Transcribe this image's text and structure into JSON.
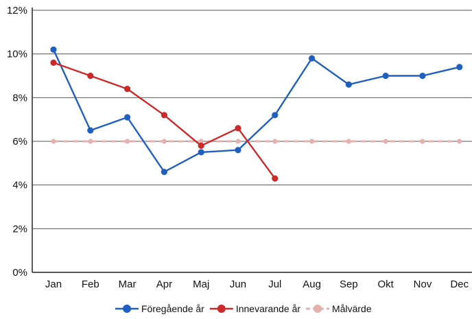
{
  "chart_data": {
    "type": "line",
    "categories": [
      "Jan",
      "Feb",
      "Mar",
      "Apr",
      "Maj",
      "Jun",
      "Jul",
      "Aug",
      "Sep",
      "Okt",
      "Nov",
      "Dec"
    ],
    "ylim": [
      0,
      12
    ],
    "y_ticks": [
      0,
      2,
      4,
      6,
      8,
      10,
      12
    ],
    "y_tick_labels": [
      "0%",
      "2%",
      "4%",
      "6%",
      "8%",
      "10%",
      "12%"
    ],
    "grid": true,
    "legend_position": "bottom",
    "series": [
      {
        "name": "Föregående år",
        "color": "#1f5fbf",
        "values": [
          10.2,
          6.5,
          7.1,
          4.6,
          5.5,
          5.6,
          7.2,
          9.8,
          8.6,
          9.0,
          9.0,
          9.4
        ]
      },
      {
        "name": "Innevarande år",
        "color": "#cc2a2a",
        "values": [
          9.6,
          9.0,
          8.4,
          7.2,
          5.8,
          6.6,
          4.3,
          null,
          null,
          null,
          null,
          null
        ]
      },
      {
        "name": "Målvärde",
        "color": "#e3b1ae",
        "values": [
          6,
          6,
          6,
          6,
          6,
          6,
          6,
          6,
          6,
          6,
          6,
          6
        ]
      }
    ]
  }
}
